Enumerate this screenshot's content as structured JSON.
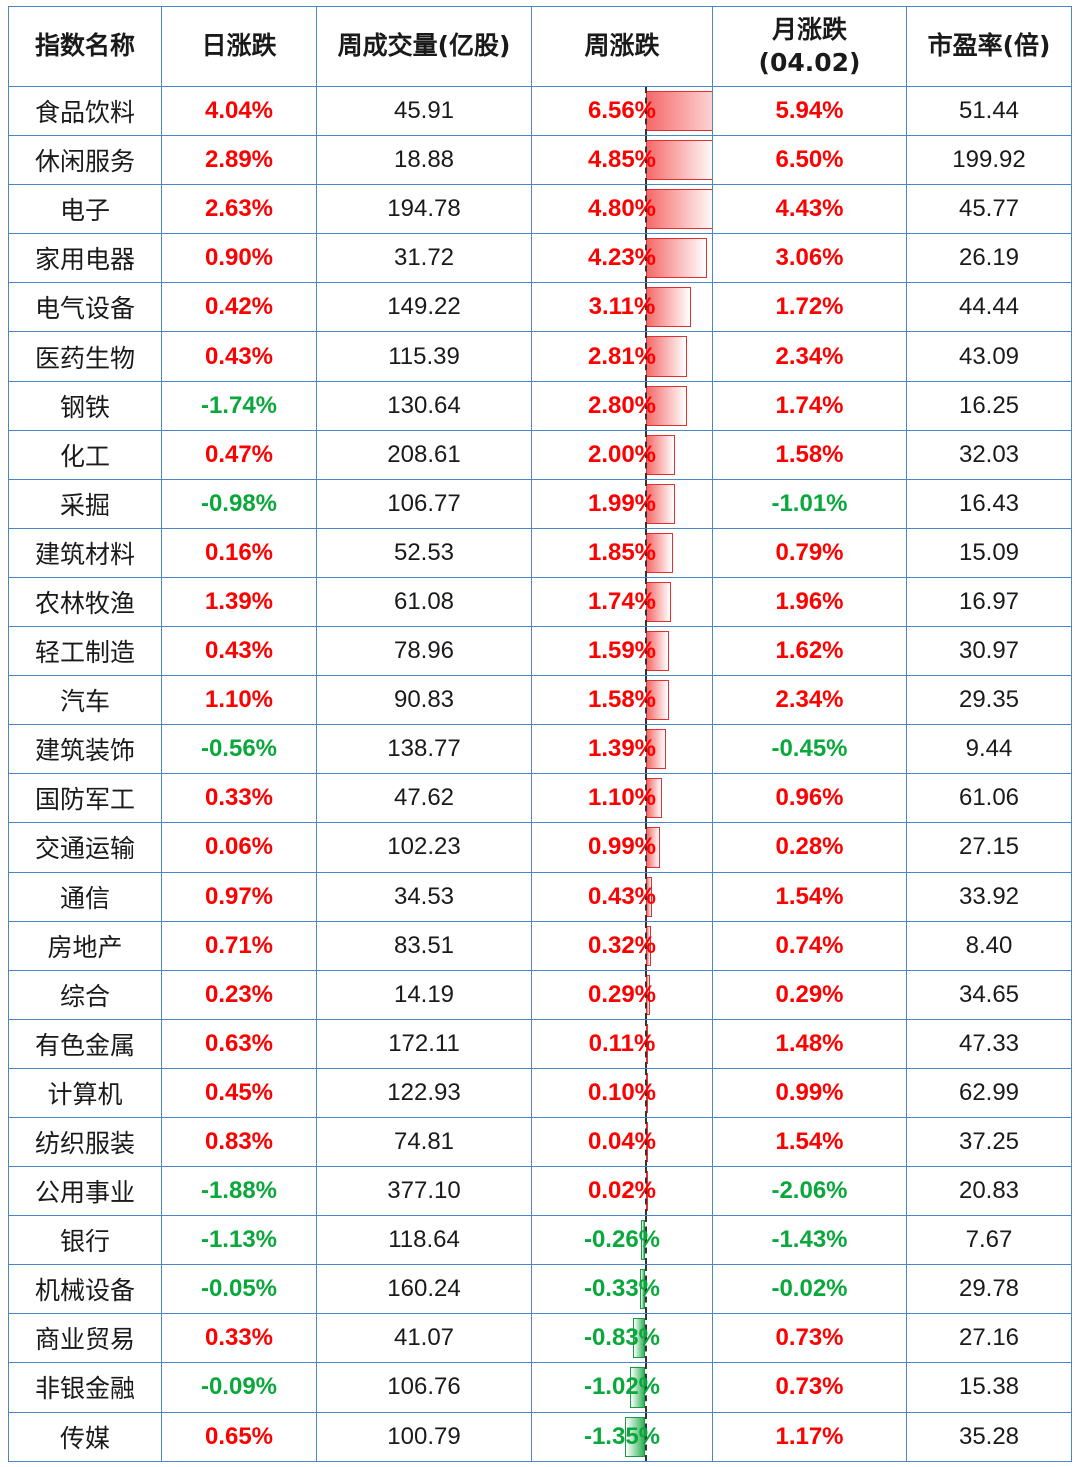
{
  "headers": {
    "name": "指数名称",
    "daily": "日涨跌",
    "weekly_volume": "周成交量(亿股)",
    "weekly": "周涨跌",
    "monthly": "月涨跌",
    "monthly_date": "(04.02)",
    "pe": "市盈率(倍)"
  },
  "colors": {
    "up": "#ff0000",
    "down": "#0aa83c",
    "border": "#4a86c8"
  },
  "rows": [
    {
      "name": "食品饮料",
      "daily": "4.04%",
      "volume": "45.91",
      "weekly": "6.56%",
      "weekly_value": 6.56,
      "monthly": "5.94%",
      "pe": "51.44"
    },
    {
      "name": "休闲服务",
      "daily": "2.89%",
      "volume": "18.88",
      "weekly": "4.85%",
      "weekly_value": 4.85,
      "monthly": "6.50%",
      "pe": "199.92"
    },
    {
      "name": "电子",
      "daily": "2.63%",
      "volume": "194.78",
      "weekly": "4.80%",
      "weekly_value": 4.8,
      "monthly": "4.43%",
      "pe": "45.77"
    },
    {
      "name": "家用电器",
      "daily": "0.90%",
      "volume": "31.72",
      "weekly": "4.23%",
      "weekly_value": 4.23,
      "monthly": "3.06%",
      "pe": "26.19"
    },
    {
      "name": "电气设备",
      "daily": "0.42%",
      "volume": "149.22",
      "weekly": "3.11%",
      "weekly_value": 3.11,
      "monthly": "1.72%",
      "pe": "44.44"
    },
    {
      "name": "医药生物",
      "daily": "0.43%",
      "volume": "115.39",
      "weekly": "2.81%",
      "weekly_value": 2.81,
      "monthly": "2.34%",
      "pe": "43.09"
    },
    {
      "name": "钢铁",
      "daily": "-1.74%",
      "volume": "130.64",
      "weekly": "2.80%",
      "weekly_value": 2.8,
      "monthly": "1.74%",
      "pe": "16.25"
    },
    {
      "name": "化工",
      "daily": "0.47%",
      "volume": "208.61",
      "weekly": "2.00%",
      "weekly_value": 2.0,
      "monthly": "1.58%",
      "pe": "32.03"
    },
    {
      "name": "采掘",
      "daily": "-0.98%",
      "volume": "106.77",
      "weekly": "1.99%",
      "weekly_value": 1.99,
      "monthly": "-1.01%",
      "pe": "16.43"
    },
    {
      "name": "建筑材料",
      "daily": "0.16%",
      "volume": "52.53",
      "weekly": "1.85%",
      "weekly_value": 1.85,
      "monthly": "0.79%",
      "pe": "15.09"
    },
    {
      "name": "农林牧渔",
      "daily": "1.39%",
      "volume": "61.08",
      "weekly": "1.74%",
      "weekly_value": 1.74,
      "monthly": "1.96%",
      "pe": "16.97"
    },
    {
      "name": "轻工制造",
      "daily": "0.43%",
      "volume": "78.96",
      "weekly": "1.59%",
      "weekly_value": 1.59,
      "monthly": "1.62%",
      "pe": "30.97"
    },
    {
      "name": "汽车",
      "daily": "1.10%",
      "volume": "90.83",
      "weekly": "1.58%",
      "weekly_value": 1.58,
      "monthly": "2.34%",
      "pe": "29.35"
    },
    {
      "name": "建筑装饰",
      "daily": "-0.56%",
      "volume": "138.77",
      "weekly": "1.39%",
      "weekly_value": 1.39,
      "monthly": "-0.45%",
      "pe": "9.44"
    },
    {
      "name": "国防军工",
      "daily": "0.33%",
      "volume": "47.62",
      "weekly": "1.10%",
      "weekly_value": 1.1,
      "monthly": "0.96%",
      "pe": "61.06"
    },
    {
      "name": "交通运输",
      "daily": "0.06%",
      "volume": "102.23",
      "weekly": "0.99%",
      "weekly_value": 0.99,
      "monthly": "0.28%",
      "pe": "27.15"
    },
    {
      "name": "通信",
      "daily": "0.97%",
      "volume": "34.53",
      "weekly": "0.43%",
      "weekly_value": 0.43,
      "monthly": "1.54%",
      "pe": "33.92"
    },
    {
      "name": "房地产",
      "daily": "0.71%",
      "volume": "83.51",
      "weekly": "0.32%",
      "weekly_value": 0.32,
      "monthly": "0.74%",
      "pe": "8.40"
    },
    {
      "name": "综合",
      "daily": "0.23%",
      "volume": "14.19",
      "weekly": "0.29%",
      "weekly_value": 0.29,
      "monthly": "0.29%",
      "pe": "34.65"
    },
    {
      "name": "有色金属",
      "daily": "0.63%",
      "volume": "172.11",
      "weekly": "0.11%",
      "weekly_value": 0.11,
      "monthly": "1.48%",
      "pe": "47.33"
    },
    {
      "name": "计算机",
      "daily": "0.45%",
      "volume": "122.93",
      "weekly": "0.10%",
      "weekly_value": 0.1,
      "monthly": "0.99%",
      "pe": "62.99"
    },
    {
      "name": "纺织服装",
      "daily": "0.83%",
      "volume": "74.81",
      "weekly": "0.04%",
      "weekly_value": 0.04,
      "monthly": "1.54%",
      "pe": "37.25"
    },
    {
      "name": "公用事业",
      "daily": "-1.88%",
      "volume": "377.10",
      "weekly": "0.02%",
      "weekly_value": 0.02,
      "monthly": "-2.06%",
      "pe": "20.83"
    },
    {
      "name": "银行",
      "daily": "-1.13%",
      "volume": "118.64",
      "weekly": "-0.26%",
      "weekly_value": -0.26,
      "monthly": "-1.43%",
      "pe": "7.67"
    },
    {
      "name": "机械设备",
      "daily": "-0.05%",
      "volume": "160.24",
      "weekly": "-0.33%",
      "weekly_value": -0.33,
      "monthly": "-0.02%",
      "pe": "29.78"
    },
    {
      "name": "商业贸易",
      "daily": "0.33%",
      "volume": "41.07",
      "weekly": "-0.83%",
      "weekly_value": -0.83,
      "monthly": "0.73%",
      "pe": "27.16"
    },
    {
      "name": "非银金融",
      "daily": "-0.09%",
      "volume": "106.76",
      "weekly": "-1.02%",
      "weekly_value": -1.02,
      "monthly": "0.73%",
      "pe": "15.38"
    },
    {
      "name": "传媒",
      "daily": "0.65%",
      "volume": "100.79",
      "weekly": "-1.35%",
      "weekly_value": -1.35,
      "monthly": "1.17%",
      "pe": "35.28"
    }
  ]
}
